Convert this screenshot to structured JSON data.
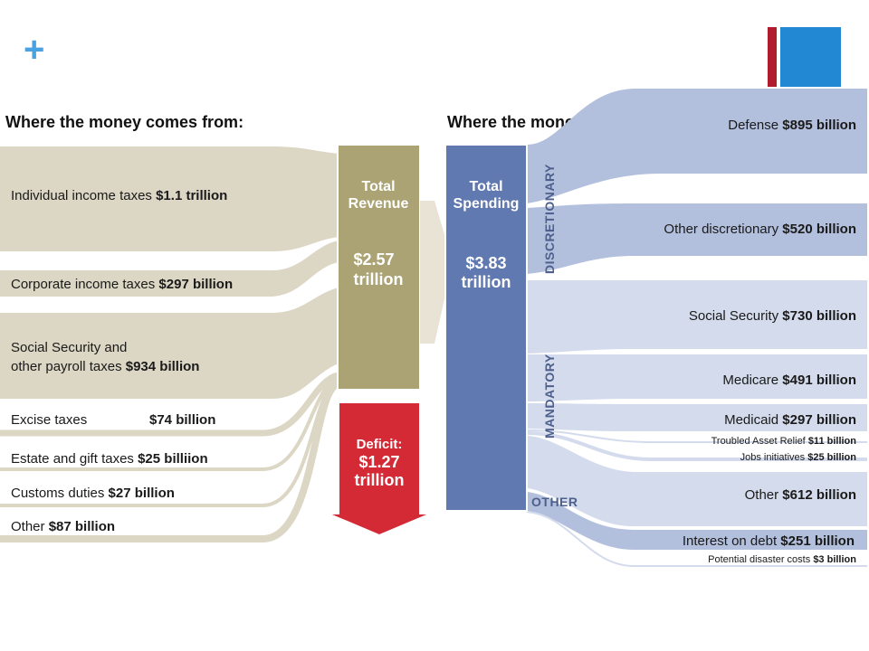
{
  "slide": {
    "plus_icon": "+",
    "accent_colors": [
      "#b01c2e",
      "#2288d4"
    ]
  },
  "headers": {
    "left": "Where the money comes from:",
    "right": "Where the money goes:"
  },
  "revenue": {
    "box_label_1": "Total",
    "box_label_2": "Revenue",
    "amount": "$2.57",
    "unit": "trillion",
    "items": [
      {
        "name": "Individual income taxes",
        "value": "$1.1 trillion"
      },
      {
        "name": "Corporate income taxes",
        "value": "$297 billion"
      },
      {
        "name": "Social Security and",
        "name2": "other payroll taxes",
        "value": "$934 billion"
      },
      {
        "name": "Excise taxes",
        "value": "$74 billion"
      },
      {
        "name": "Estate and gift taxes",
        "value": "$25 billiion"
      },
      {
        "name": "Customs duties",
        "value": "$27 billion"
      },
      {
        "name": "Other",
        "value": "$87 billion"
      }
    ]
  },
  "deficit": {
    "label": "Deficit:",
    "amount": "$1.27",
    "unit": "trillion"
  },
  "spending": {
    "box_label_1": "Total",
    "box_label_2": "Spending",
    "amount": "$3.83",
    "unit": "trillion",
    "groups": {
      "discretionary": "DISCRETIONARY",
      "mandatory": "MANDATORY",
      "other": "OTHER"
    },
    "items": [
      {
        "name": "Defense",
        "value": "$895 billion"
      },
      {
        "name": "Other discretionary",
        "value": "$520 billion"
      },
      {
        "name": "Social Security",
        "value": "$730 billion"
      },
      {
        "name": "Medicare",
        "value": "$491 billion"
      },
      {
        "name": "Medicaid",
        "value": "$297 billion"
      },
      {
        "name": "Troubled Asset Relief",
        "value": "$11 billion"
      },
      {
        "name": "Jobs initiatives",
        "value": "$25 billion"
      },
      {
        "name": "Other",
        "value": "$612 billion"
      },
      {
        "name": "Interest on debt",
        "value": "$251 billion"
      },
      {
        "name": "Potential disaster costs",
        "value": "$3 billion"
      }
    ]
  },
  "colors": {
    "revenue_flow": "#dcd6c4",
    "revenue_box": "#aca375",
    "deficit": "#d42a35",
    "spending_box": "#6079b1",
    "spending_dark": "#b3c0dd",
    "spending_light": "#d3dbec"
  }
}
